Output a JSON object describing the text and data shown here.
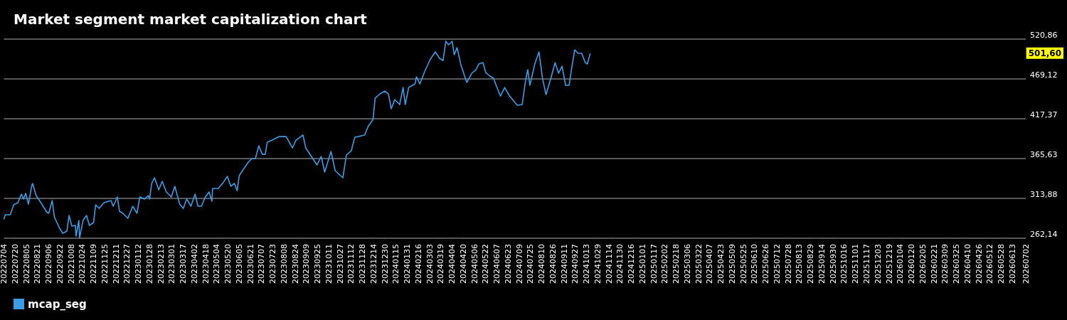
{
  "chart_data": {
    "type": "line",
    "title": "Market segment market capitalization chart",
    "x": [
      "2022-07-04",
      "2022-07-06",
      "2022-07-13",
      "2022-07-18",
      "2022-07-24",
      "2022-07-29",
      "2022-08-01",
      "2022-08-04",
      "2022-08-08",
      "2022-08-13",
      "2022-08-14",
      "2022-08-19",
      "2022-08-27",
      "2022-09-03",
      "2022-09-06",
      "2022-09-11",
      "2022-09-14",
      "2022-09-21",
      "2022-09-26",
      "2022-10-02",
      "2022-10-05",
      "2022-10-09",
      "2022-10-14",
      "2022-10-15",
      "2022-10-19",
      "2022-10-20",
      "2022-10-25",
      "2022-10-30",
      "2022-11-03",
      "2022-11-09",
      "2022-11-12",
      "2022-11-17",
      "2022-11-24",
      "2022-12-04",
      "2022-12-07",
      "2022-12-13",
      "2022-12-16",
      "2022-12-21",
      "2022-12-28",
      "2023-01-04",
      "2023-01-10",
      "2023-01-14",
      "2023-01-21",
      "2023-01-26",
      "2023-01-28",
      "2023-01-31",
      "2023-02-04",
      "2023-02-07",
      "2023-02-10",
      "2023-02-15",
      "2023-02-21",
      "2023-02-28",
      "2023-03-05",
      "2023-03-12",
      "2023-03-17",
      "2023-03-22",
      "2023-03-28",
      "2023-04-03",
      "2023-04-07",
      "2023-04-12",
      "2023-04-17",
      "2023-04-23",
      "2023-04-27",
      "2023-04-28",
      "2023-05-06",
      "2023-05-13",
      "2023-05-19",
      "2023-05-24",
      "2023-05-29",
      "2023-06-02",
      "2023-06-05",
      "2023-06-11",
      "2023-06-18",
      "2023-06-23",
      "2023-06-28",
      "2023-07-03",
      "2023-07-08",
      "2023-07-12",
      "2023-07-15",
      "2023-07-22",
      "2023-08-01",
      "2023-08-11",
      "2023-08-20",
      "2023-08-25",
      "2023-09-04",
      "2023-09-08",
      "2023-09-16",
      "2023-09-24",
      "2023-09-30",
      "2023-10-05",
      "2023-10-14",
      "2023-10-20",
      "2023-10-31",
      "2023-11-05",
      "2023-11-12",
      "2023-11-17",
      "2023-12-01",
      "2023-12-06",
      "2023-12-13",
      "2023-12-16",
      "2023-12-23",
      "2023-12-30",
      "2024-01-04",
      "2024-01-08",
      "2024-01-13",
      "2024-01-20",
      "2024-01-25",
      "2024-01-28",
      "2024-02-02",
      "2024-02-11",
      "2024-02-13",
      "2024-02-18",
      "2024-02-25",
      "2024-03-04",
      "2024-03-11",
      "2024-03-17",
      "2024-03-22",
      "2024-03-26",
      "2024-03-30",
      "2024-04-04",
      "2024-04-07",
      "2024-04-11",
      "2024-04-17",
      "2024-04-25",
      "2024-05-02",
      "2024-05-08",
      "2024-05-12",
      "2024-05-18",
      "2024-05-22",
      "2024-05-28",
      "2024-06-02",
      "2024-06-07",
      "2024-06-12",
      "2024-06-18",
      "2024-06-25",
      "2024-07-06",
      "2024-07-13",
      "2024-07-18",
      "2024-07-21",
      "2024-07-24",
      "2024-07-31",
      "2024-08-06",
      "2024-08-11",
      "2024-08-16",
      "2024-08-23",
      "2024-08-29",
      "2024-09-03",
      "2024-09-08",
      "2024-09-13",
      "2024-09-18",
      "2024-09-21",
      "2024-09-26",
      "2024-10-01",
      "2024-10-06",
      "2024-10-11",
      "2024-10-14",
      "2024-10-18"
    ],
    "series": [
      {
        "name": "mcap_seg",
        "color": "#3a9ee6",
        "values": [
          287.1,
          292.6,
          292.6,
          305.6,
          308.3,
          319.4,
          313.0,
          320.4,
          306.5,
          331.4,
          333.3,
          317.6,
          306.5,
          296.3,
          294.5,
          311.1,
          289.9,
          276.0,
          268.6,
          271.4,
          291.7,
          277.9,
          278.8,
          264.9,
          285.2,
          262.5,
          285.2,
          291.7,
          278.8,
          282.5,
          305.6,
          300.9,
          308.3,
          311.1,
          303.7,
          315.7,
          297.2,
          294.5,
          288.0,
          303.7,
          294.5,
          315.7,
          313.0,
          317.6,
          313.0,
          333.3,
          340.7,
          333.3,
          325.0,
          336.1,
          322.2,
          315.7,
          329.6,
          306.5,
          300.9,
          313.0,
          303.7,
          319.4,
          303.7,
          303.7,
          314.8,
          322.2,
          310.2,
          326.8,
          326.8,
          334.2,
          342.5,
          329.6,
          333.3,
          324.0,
          343.4,
          351.8,
          361.0,
          365.6,
          365.6,
          382.2,
          371.1,
          371.1,
          386.8,
          389.6,
          394.2,
          394.2,
          379.5,
          389.6,
          396.1,
          379.5,
          368.4,
          357.3,
          368.4,
          348.1,
          374.9,
          349.9,
          340.7,
          370.2,
          375.8,
          393.3,
          396.1,
          407.2,
          416.4,
          444.1,
          449.7,
          453.4,
          449.7,
          430.3,
          442.3,
          435.8,
          458.0,
          435.8,
          458.0,
          462.6,
          471.8,
          462.6,
          479.3,
          495.0,
          504.2,
          495.9,
          493.1,
          518.1,
          513.5,
          518.1,
          500.5,
          509.8,
          485.7,
          464.5,
          476.5,
          481.1,
          488.5,
          490.4,
          477.4,
          472.8,
          470.0,
          458.0,
          446.9,
          458.0,
          446.9,
          434.9,
          435.8,
          468.2,
          481.1,
          460.8,
          488.5,
          504.2,
          470.0,
          448.8,
          470.0,
          490.4,
          476.5,
          485.7,
          460.8,
          460.8,
          479.3,
          507.0,
          502.4,
          502.4,
          490.4,
          488.5,
          501.6
        ]
      }
    ],
    "annotations": [
      "501,60"
    ],
    "xlim": [
      "2022-07-04",
      "2026-07-02"
    ],
    "xticks": [
      {
        "value": "2022-07-04",
        "label": "20220704"
      },
      {
        "value": "2022-07-20",
        "label": "20220720"
      },
      {
        "value": "2022-08-05",
        "label": "20220805"
      },
      {
        "value": "2022-08-21",
        "label": "20220821"
      },
      {
        "value": "2022-09-06",
        "label": "20220906"
      },
      {
        "value": "2022-09-22",
        "label": "20220922"
      },
      {
        "value": "2022-10-08",
        "label": "20221008"
      },
      {
        "value": "2022-10-24",
        "label": "20221024"
      },
      {
        "value": "2022-11-09",
        "label": "20221109"
      },
      {
        "value": "2022-11-25",
        "label": "20221125"
      },
      {
        "value": "2022-12-11",
        "label": "20221211"
      },
      {
        "value": "2022-12-27",
        "label": "20221227"
      },
      {
        "value": "2023-01-12",
        "label": "20230112"
      },
      {
        "value": "2023-01-28",
        "label": "20230128"
      },
      {
        "value": "2023-02-13",
        "label": "20230213"
      },
      {
        "value": "2023-03-01",
        "label": "20230301"
      },
      {
        "value": "2023-03-17",
        "label": "20230317"
      },
      {
        "value": "2023-04-02",
        "label": "20230402"
      },
      {
        "value": "2023-04-18",
        "label": "20230418"
      },
      {
        "value": "2023-05-04",
        "label": "20230504"
      },
      {
        "value": "2023-05-20",
        "label": "20230520"
      },
      {
        "value": "2023-06-05",
        "label": "20230605"
      },
      {
        "value": "2023-06-21",
        "label": "20230621"
      },
      {
        "value": "2023-07-07",
        "label": "20230707"
      },
      {
        "value": "2023-07-23",
        "label": "20230723"
      },
      {
        "value": "2023-08-08",
        "label": "20230808"
      },
      {
        "value": "2023-08-24",
        "label": "20230824"
      },
      {
        "value": "2023-09-09",
        "label": "20230909"
      },
      {
        "value": "2023-09-25",
        "label": "20230925"
      },
      {
        "value": "2023-10-11",
        "label": "20231011"
      },
      {
        "value": "2023-10-27",
        "label": "20231027"
      },
      {
        "value": "2023-11-12",
        "label": "20231112"
      },
      {
        "value": "2023-11-28",
        "label": "20231128"
      },
      {
        "value": "2023-12-14",
        "label": "20231214"
      },
      {
        "value": "2023-12-30",
        "label": "20231230"
      },
      {
        "value": "2024-01-15",
        "label": "20240115"
      },
      {
        "value": "2024-01-31",
        "label": "20240131"
      },
      {
        "value": "2024-02-16",
        "label": "20240216"
      },
      {
        "value": "2024-03-03",
        "label": "20240303"
      },
      {
        "value": "2024-03-19",
        "label": "20240319"
      },
      {
        "value": "2024-04-04",
        "label": "20240404"
      },
      {
        "value": "2024-04-20",
        "label": "20240420"
      },
      {
        "value": "2024-05-06",
        "label": "20240506"
      },
      {
        "value": "2024-05-22",
        "label": "20240522"
      },
      {
        "value": "2024-06-07",
        "label": "20240607"
      },
      {
        "value": "2024-06-23",
        "label": "20240623"
      },
      {
        "value": "2024-07-09",
        "label": "20240709"
      },
      {
        "value": "2024-07-25",
        "label": "20240725"
      },
      {
        "value": "2024-08-10",
        "label": "20240810"
      },
      {
        "value": "2024-08-26",
        "label": "20240826"
      },
      {
        "value": "2024-09-11",
        "label": "20240911"
      },
      {
        "value": "2024-09-27",
        "label": "20240927"
      },
      {
        "value": "2024-10-13",
        "label": "20241013"
      },
      {
        "value": "2024-10-29",
        "label": "20241029"
      },
      {
        "value": "2024-11-14",
        "label": "20241114"
      },
      {
        "value": "2024-11-30",
        "label": "20241130"
      },
      {
        "value": "2024-12-16",
        "label": "20241216"
      },
      {
        "value": "2025-01-01",
        "label": "20250101"
      },
      {
        "value": "2025-01-17",
        "label": "20250117"
      },
      {
        "value": "2025-02-02",
        "label": "20250202"
      },
      {
        "value": "2025-02-18",
        "label": "20250218"
      },
      {
        "value": "2025-03-06",
        "label": "20250306"
      },
      {
        "value": "2025-03-22",
        "label": "20250322"
      },
      {
        "value": "2025-04-07",
        "label": "20250407"
      },
      {
        "value": "2025-04-23",
        "label": "20250423"
      },
      {
        "value": "2025-05-09",
        "label": "20250509"
      },
      {
        "value": "2025-05-25",
        "label": "20250525"
      },
      {
        "value": "2025-06-10",
        "label": "20250610"
      },
      {
        "value": "2025-06-26",
        "label": "20250626"
      },
      {
        "value": "2025-07-12",
        "label": "20250712"
      },
      {
        "value": "2025-07-28",
        "label": "20250728"
      },
      {
        "value": "2025-08-13",
        "label": "20250813"
      },
      {
        "value": "2025-08-29",
        "label": "20250829"
      },
      {
        "value": "2025-09-14",
        "label": "20250914"
      },
      {
        "value": "2025-09-30",
        "label": "20250930"
      },
      {
        "value": "2025-10-16",
        "label": "20251016"
      },
      {
        "value": "2025-11-01",
        "label": "20251101"
      },
      {
        "value": "2025-11-17",
        "label": "20251117"
      },
      {
        "value": "2025-12-03",
        "label": "20251203"
      },
      {
        "value": "2025-12-19",
        "label": "20251219"
      },
      {
        "value": "2026-01-04",
        "label": "20260104"
      },
      {
        "value": "2026-01-20",
        "label": "20260120"
      },
      {
        "value": "2026-02-05",
        "label": "20260205"
      },
      {
        "value": "2026-02-21",
        "label": "20260221"
      },
      {
        "value": "2026-03-09",
        "label": "20260309"
      },
      {
        "value": "2026-03-25",
        "label": "20260325"
      },
      {
        "value": "2026-04-10",
        "label": "20260410"
      },
      {
        "value": "2026-04-26",
        "label": "20260426"
      },
      {
        "value": "2026-05-12",
        "label": "20260512"
      },
      {
        "value": "2026-05-28",
        "label": "20260528"
      },
      {
        "value": "2026-06-13",
        "label": "20260613"
      },
      {
        "value": "2026-07-02",
        "label": "20260702"
      }
    ],
    "ylim": [
      262.14,
      520.86
    ],
    "yticks": [
      {
        "value": 262.14,
        "label": "262,14"
      },
      {
        "value": 313.88,
        "label": "313,88"
      },
      {
        "value": 365.63,
        "label": "365,63"
      },
      {
        "value": 417.37,
        "label": "417,37"
      },
      {
        "value": 469.12,
        "label": "469,12"
      },
      {
        "value": 520.86,
        "label": "520,86"
      }
    ],
    "grid": "y",
    "legend": "bottom left",
    "marker": "none",
    "line_style": "solid"
  }
}
